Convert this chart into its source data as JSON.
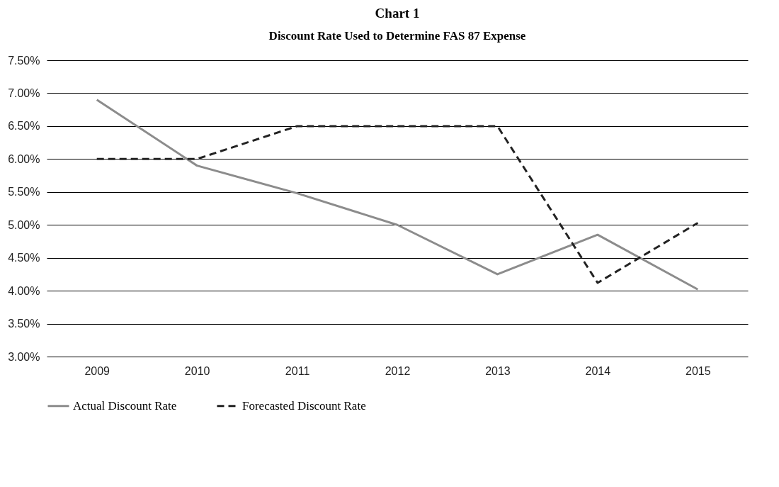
{
  "chart_data": {
    "type": "line",
    "title": "Chart 1",
    "subtitle": "Discount Rate Used to Determine FAS 87 Expense",
    "categories": [
      "2009",
      "2010",
      "2011",
      "2012",
      "2013",
      "2014",
      "2015"
    ],
    "series": [
      {
        "name": "Actual Discount Rate",
        "color": "#8c8c8c",
        "line_style": "solid",
        "values": [
          6.9,
          5.9,
          5.48,
          5.0,
          4.25,
          4.85,
          4.02
        ]
      },
      {
        "name": "Forecasted Discount Rate",
        "color": "#222222",
        "line_style": "dashed",
        "values": [
          6.0,
          6.0,
          6.5,
          6.5,
          6.5,
          4.12,
          5.03
        ]
      }
    ],
    "ylim": [
      3.0,
      7.5
    ],
    "yticks": [
      {
        "value": 3.0,
        "label": "3.00%"
      },
      {
        "value": 3.5,
        "label": "3.50%"
      },
      {
        "value": 4.0,
        "label": "4.00%"
      },
      {
        "value": 4.5,
        "label": "4.50%"
      },
      {
        "value": 5.0,
        "label": "5.00%"
      },
      {
        "value": 5.5,
        "label": "5.50%"
      },
      {
        "value": 6.0,
        "label": "6.00%"
      },
      {
        "value": 6.5,
        "label": "6.50%"
      },
      {
        "value": 7.0,
        "label": "7.00%"
      },
      {
        "value": 7.5,
        "label": "7.50%"
      }
    ],
    "grid": "y",
    "legend": "bottom",
    "marker": "none"
  }
}
